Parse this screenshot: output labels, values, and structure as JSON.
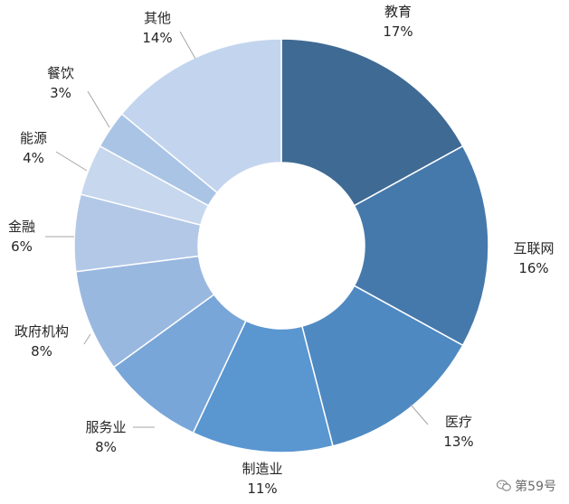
{
  "chart_data": {
    "type": "pie",
    "variant": "donut",
    "title": "",
    "categories": [
      "教育",
      "互联网",
      "医疗",
      "制造业",
      "服务业",
      "政府机构",
      "金融",
      "能源",
      "餐饮",
      "其他"
    ],
    "values": [
      17,
      16,
      13,
      11,
      8,
      8,
      6,
      4,
      3,
      14
    ],
    "value_labels": [
      "17%",
      "16%",
      "13%",
      "11%",
      "8%",
      "8%",
      "6%",
      "4%",
      "3%",
      "14%"
    ],
    "colors": [
      "#3f6a94",
      "#4679ab",
      "#4f89c2",
      "#5a96d0",
      "#78a6d9",
      "#99b8e0",
      "#b2c8e6",
      "#c7d7ee",
      "#aac4e6",
      "#c3d5ee"
    ],
    "start_angle_deg": 0,
    "direction": "clockwise",
    "legend": "none",
    "labels_outside": true
  },
  "watermark": {
    "icon": "wechat-icon",
    "text": "第59号"
  }
}
